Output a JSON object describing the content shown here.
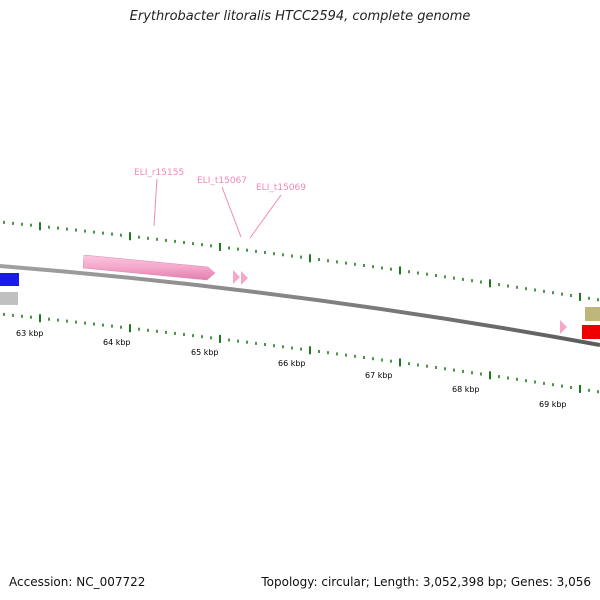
{
  "title": "Erythrobacter litoralis HTCC2594, complete genome",
  "footer": {
    "accession": "Accession: NC_007722",
    "summary": "Topology: circular; Length: 3,052,398 bp; Genes: 3,056"
  },
  "scale": {
    "tick_labels": [
      "63 kbp",
      "64 kbp",
      "65 kbp",
      "66 kbp",
      "67 kbp",
      "68 kbp",
      "69 kbp"
    ]
  },
  "gene_labels": [
    "ELI_r15155",
    "ELI_t15067",
    "ELI_t15069"
  ],
  "colors": {
    "backbone": "#808080",
    "tick": "#1f7a1f",
    "rrna": "#f5a6c9",
    "trna": "#f5a6c9",
    "gene_blue": "#1a1aee",
    "gene_gray": "#c0c0c0",
    "gene_red": "#ee0000",
    "gene_olive": "#bdb57a",
    "label": "#ee88b8"
  }
}
